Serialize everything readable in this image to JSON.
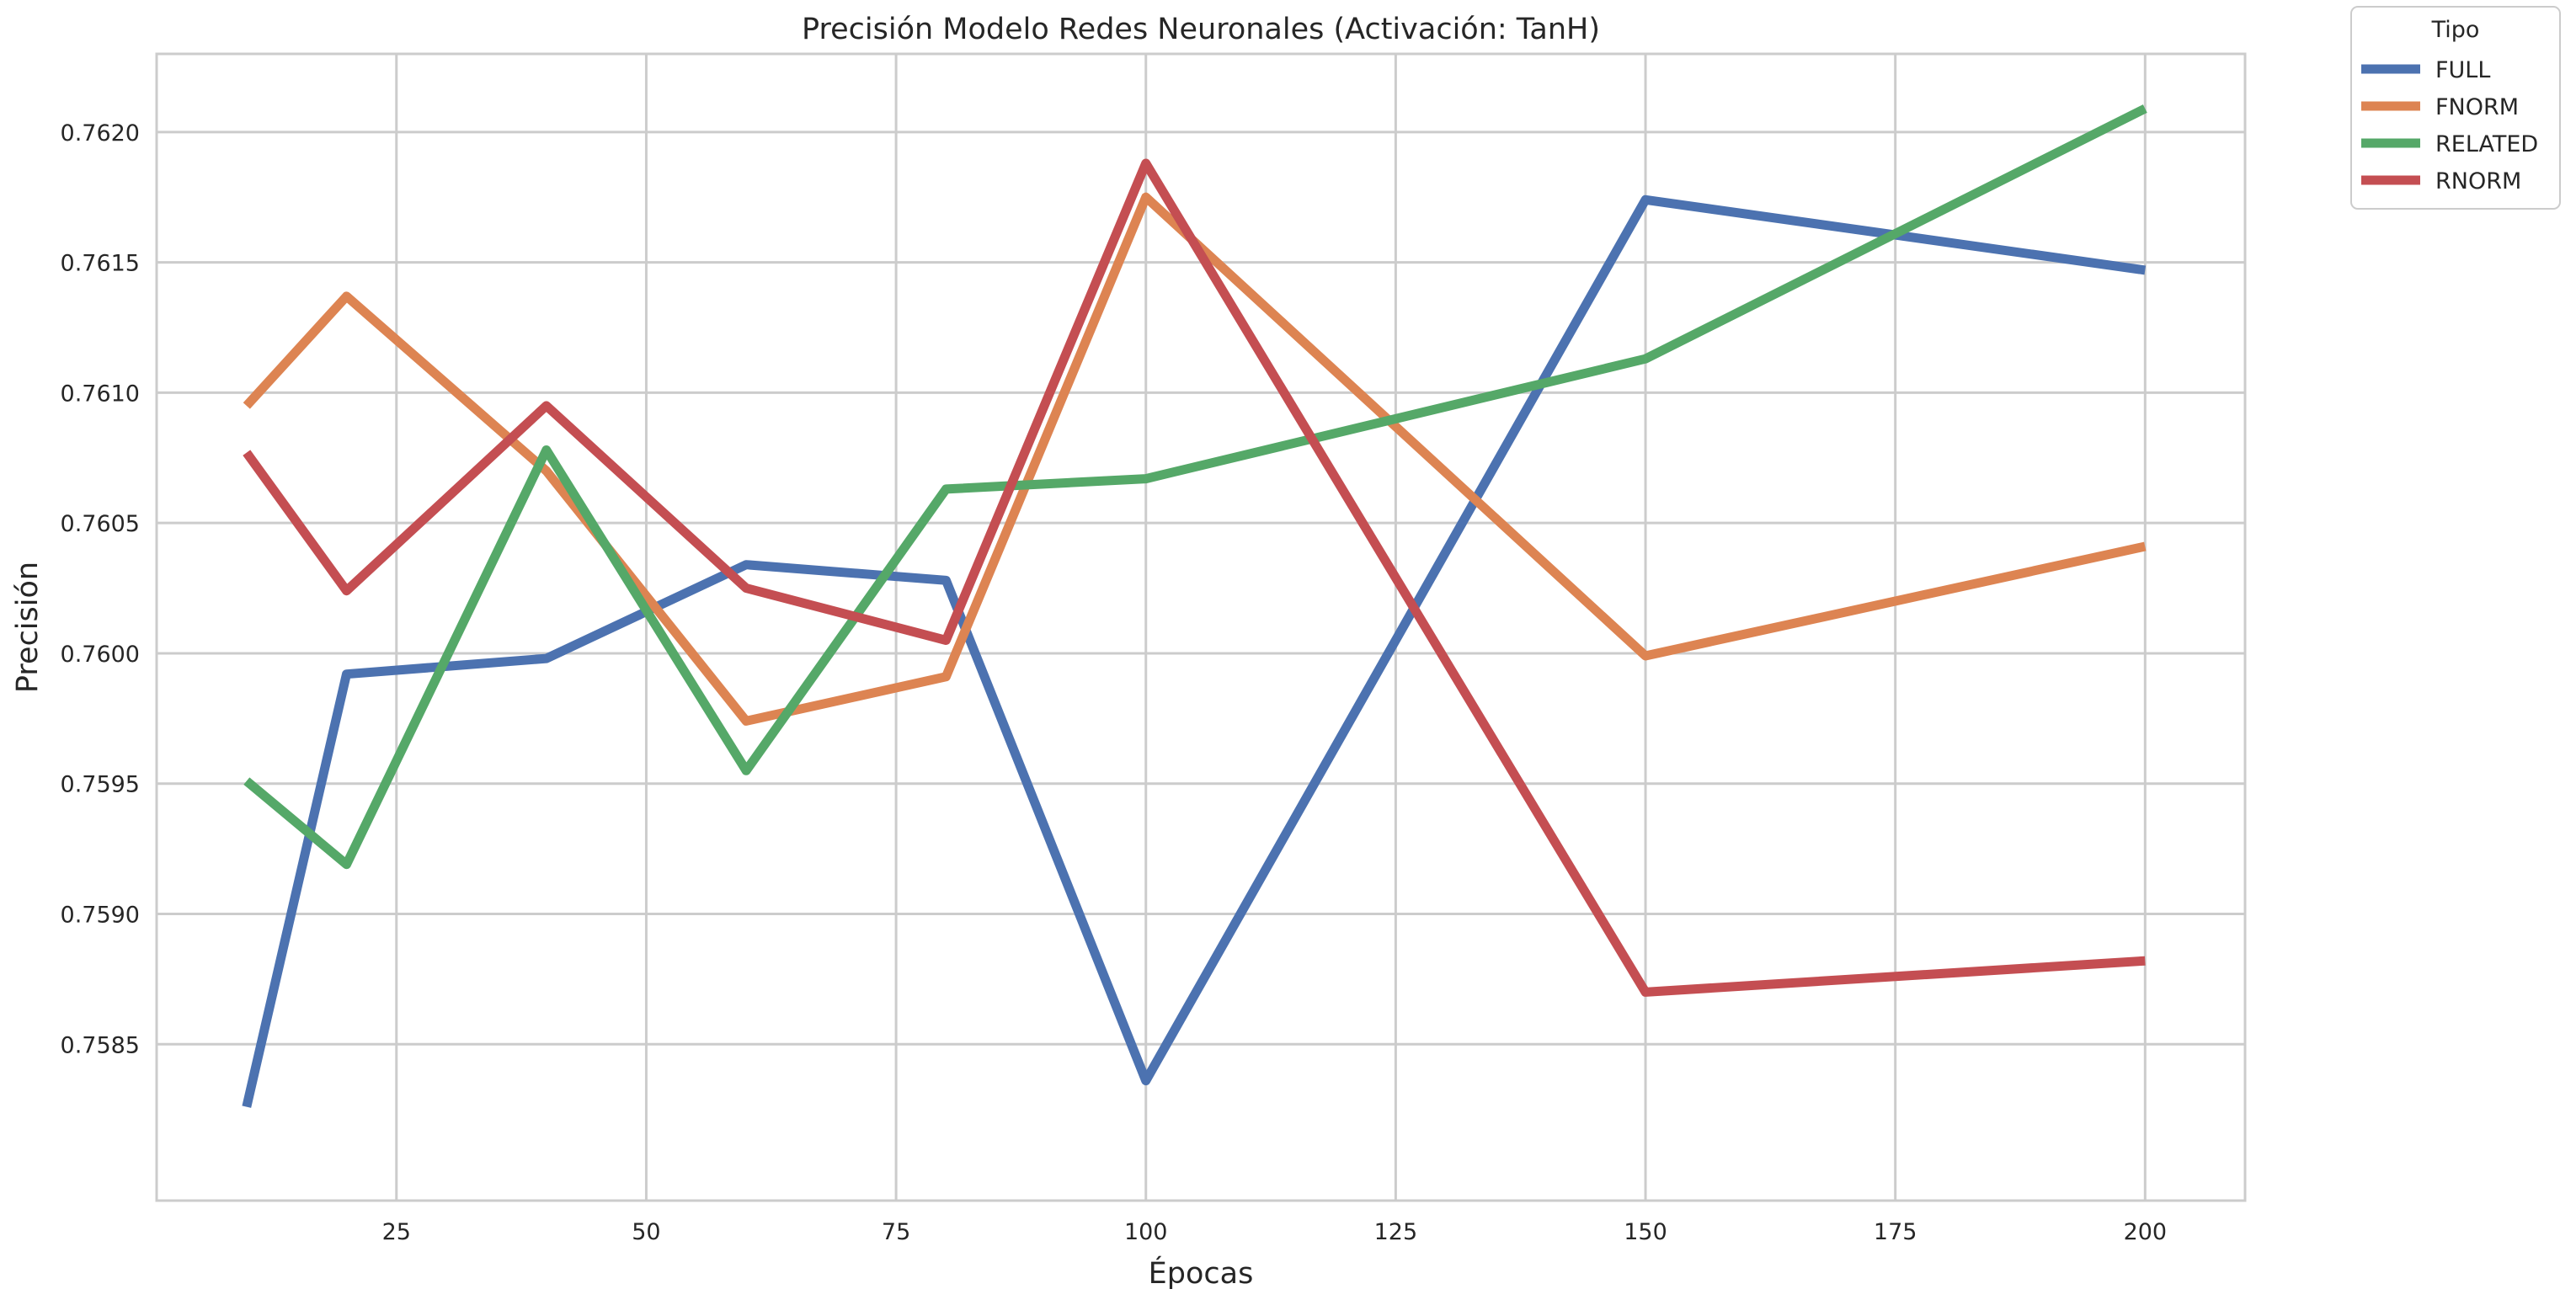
{
  "chart_data": {
    "type": "line",
    "title": "Precisión Modelo Redes Neuronales (Activación: TanH)",
    "xlabel": "Épocas",
    "ylabel": "Precisión",
    "x": [
      10,
      20,
      40,
      60,
      80,
      100,
      150,
      200
    ],
    "xlim": [
      1,
      210
    ],
    "ylim": [
      0.7579,
      0.7623
    ],
    "xticks": [
      25,
      50,
      75,
      100,
      125,
      150,
      175,
      200
    ],
    "yticks": [
      0.7585,
      0.759,
      0.7595,
      0.76,
      0.7605,
      0.761,
      0.7615,
      0.762
    ],
    "xtick_labels": [
      "25",
      "50",
      "75",
      "100",
      "125",
      "150",
      "175",
      "200"
    ],
    "ytick_labels": [
      "0.7585",
      "0.7590",
      "0.7595",
      "0.7600",
      "0.7605",
      "0.7610",
      "0.7615",
      "0.7620"
    ],
    "grid": true,
    "legend": {
      "title": "Tipo",
      "placement": "outside-top-right"
    },
    "series": [
      {
        "name": "FULL",
        "color": "#4c72b0",
        "values": [
          0.75826,
          0.75992,
          0.75998,
          0.76034,
          0.76028,
          0.75836,
          0.76174,
          0.76147
        ]
      },
      {
        "name": "FNORM",
        "color": "#dd8452",
        "values": [
          0.76095,
          0.76137,
          0.7607,
          0.75974,
          0.75991,
          0.76175,
          0.75999,
          0.76041
        ]
      },
      {
        "name": "RELATED",
        "color": "#55a868",
        "values": [
          0.75951,
          0.75919,
          0.76078,
          0.75955,
          0.76063,
          0.76067,
          0.76113,
          0.76209
        ]
      },
      {
        "name": "RNORM",
        "color": "#c44e52",
        "values": [
          0.76077,
          0.76024,
          0.76095,
          0.76025,
          0.76005,
          0.76188,
          0.7587,
          0.75882
        ]
      }
    ]
  }
}
